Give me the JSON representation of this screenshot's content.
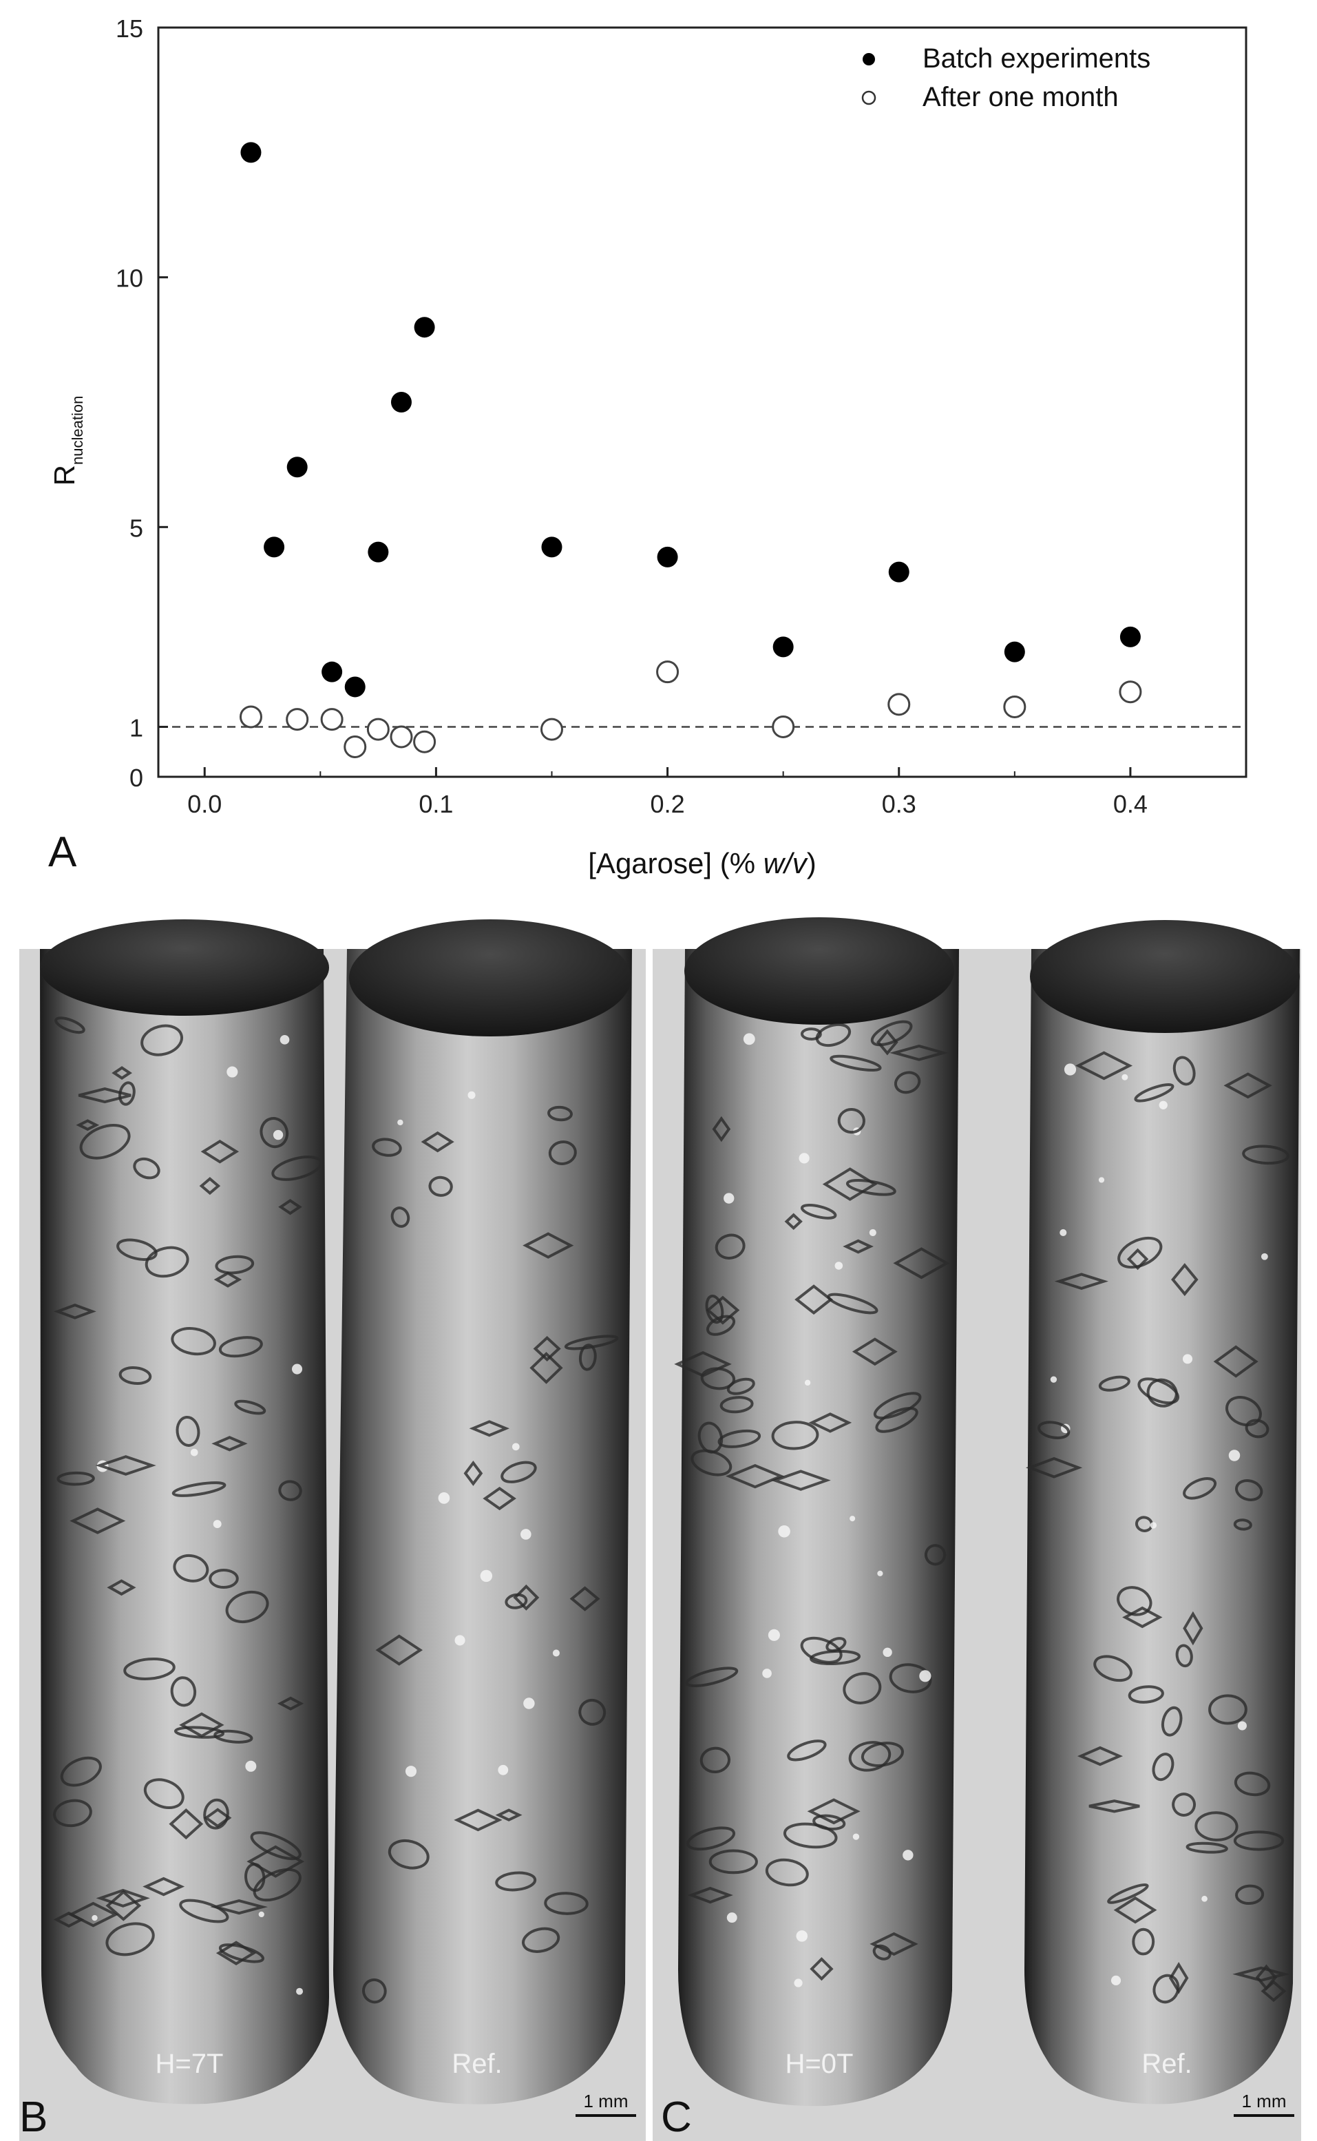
{
  "panels": {
    "a_label": "A",
    "b_label": "B",
    "c_label": "C"
  },
  "chart_data": {
    "type": "scatter",
    "xlabel_prefix": "[Agarose] (% ",
    "xlabel_italic": "w/v",
    "xlabel_suffix": ")",
    "ylabel_main": "R",
    "ylabel_sub": "nucleation",
    "xlim": [
      -0.02,
      0.45
    ],
    "ylim": [
      0,
      15
    ],
    "x_ticks": [
      0.0,
      0.1,
      0.2,
      0.3,
      0.4
    ],
    "x_tick_labels": [
      "0.0",
      "0.1",
      "0.2",
      "0.3",
      "0.4"
    ],
    "y_ticks": [
      0,
      1,
      5,
      10,
      15
    ],
    "y_tick_labels": [
      "0",
      "1",
      "5",
      "10",
      "15"
    ],
    "reference_line_y": 1,
    "grid": false,
    "legend_position": "top-right",
    "series": [
      {
        "name": "Batch experiments",
        "marker": "filled-circle",
        "points": [
          [
            0.02,
            12.5
          ],
          [
            0.03,
            4.6
          ],
          [
            0.04,
            6.2
          ],
          [
            0.055,
            2.1
          ],
          [
            0.065,
            1.8
          ],
          [
            0.075,
            4.5
          ],
          [
            0.085,
            7.5
          ],
          [
            0.095,
            9.0
          ],
          [
            0.15,
            4.6
          ],
          [
            0.2,
            4.4
          ],
          [
            0.25,
            2.6
          ],
          [
            0.3,
            4.1
          ],
          [
            0.35,
            2.5
          ],
          [
            0.4,
            2.8
          ]
        ]
      },
      {
        "name": "After one month",
        "marker": "open-circle",
        "points": [
          [
            0.02,
            1.2
          ],
          [
            0.04,
            1.15
          ],
          [
            0.055,
            1.15
          ],
          [
            0.065,
            0.6
          ],
          [
            0.075,
            0.95
          ],
          [
            0.085,
            0.8
          ],
          [
            0.095,
            0.7
          ],
          [
            0.15,
            0.95
          ],
          [
            0.2,
            2.1
          ],
          [
            0.25,
            1.0
          ],
          [
            0.3,
            1.45
          ],
          [
            0.35,
            1.4
          ],
          [
            0.4,
            1.7
          ]
        ]
      }
    ]
  },
  "photos": {
    "b_tube1_label": "H=7T",
    "b_tube2_label": "Ref.",
    "b_scale_label": "1 mm",
    "c_tube1_label": "H=0T",
    "c_tube2_label": "Ref.",
    "c_scale_label": "1 mm"
  }
}
